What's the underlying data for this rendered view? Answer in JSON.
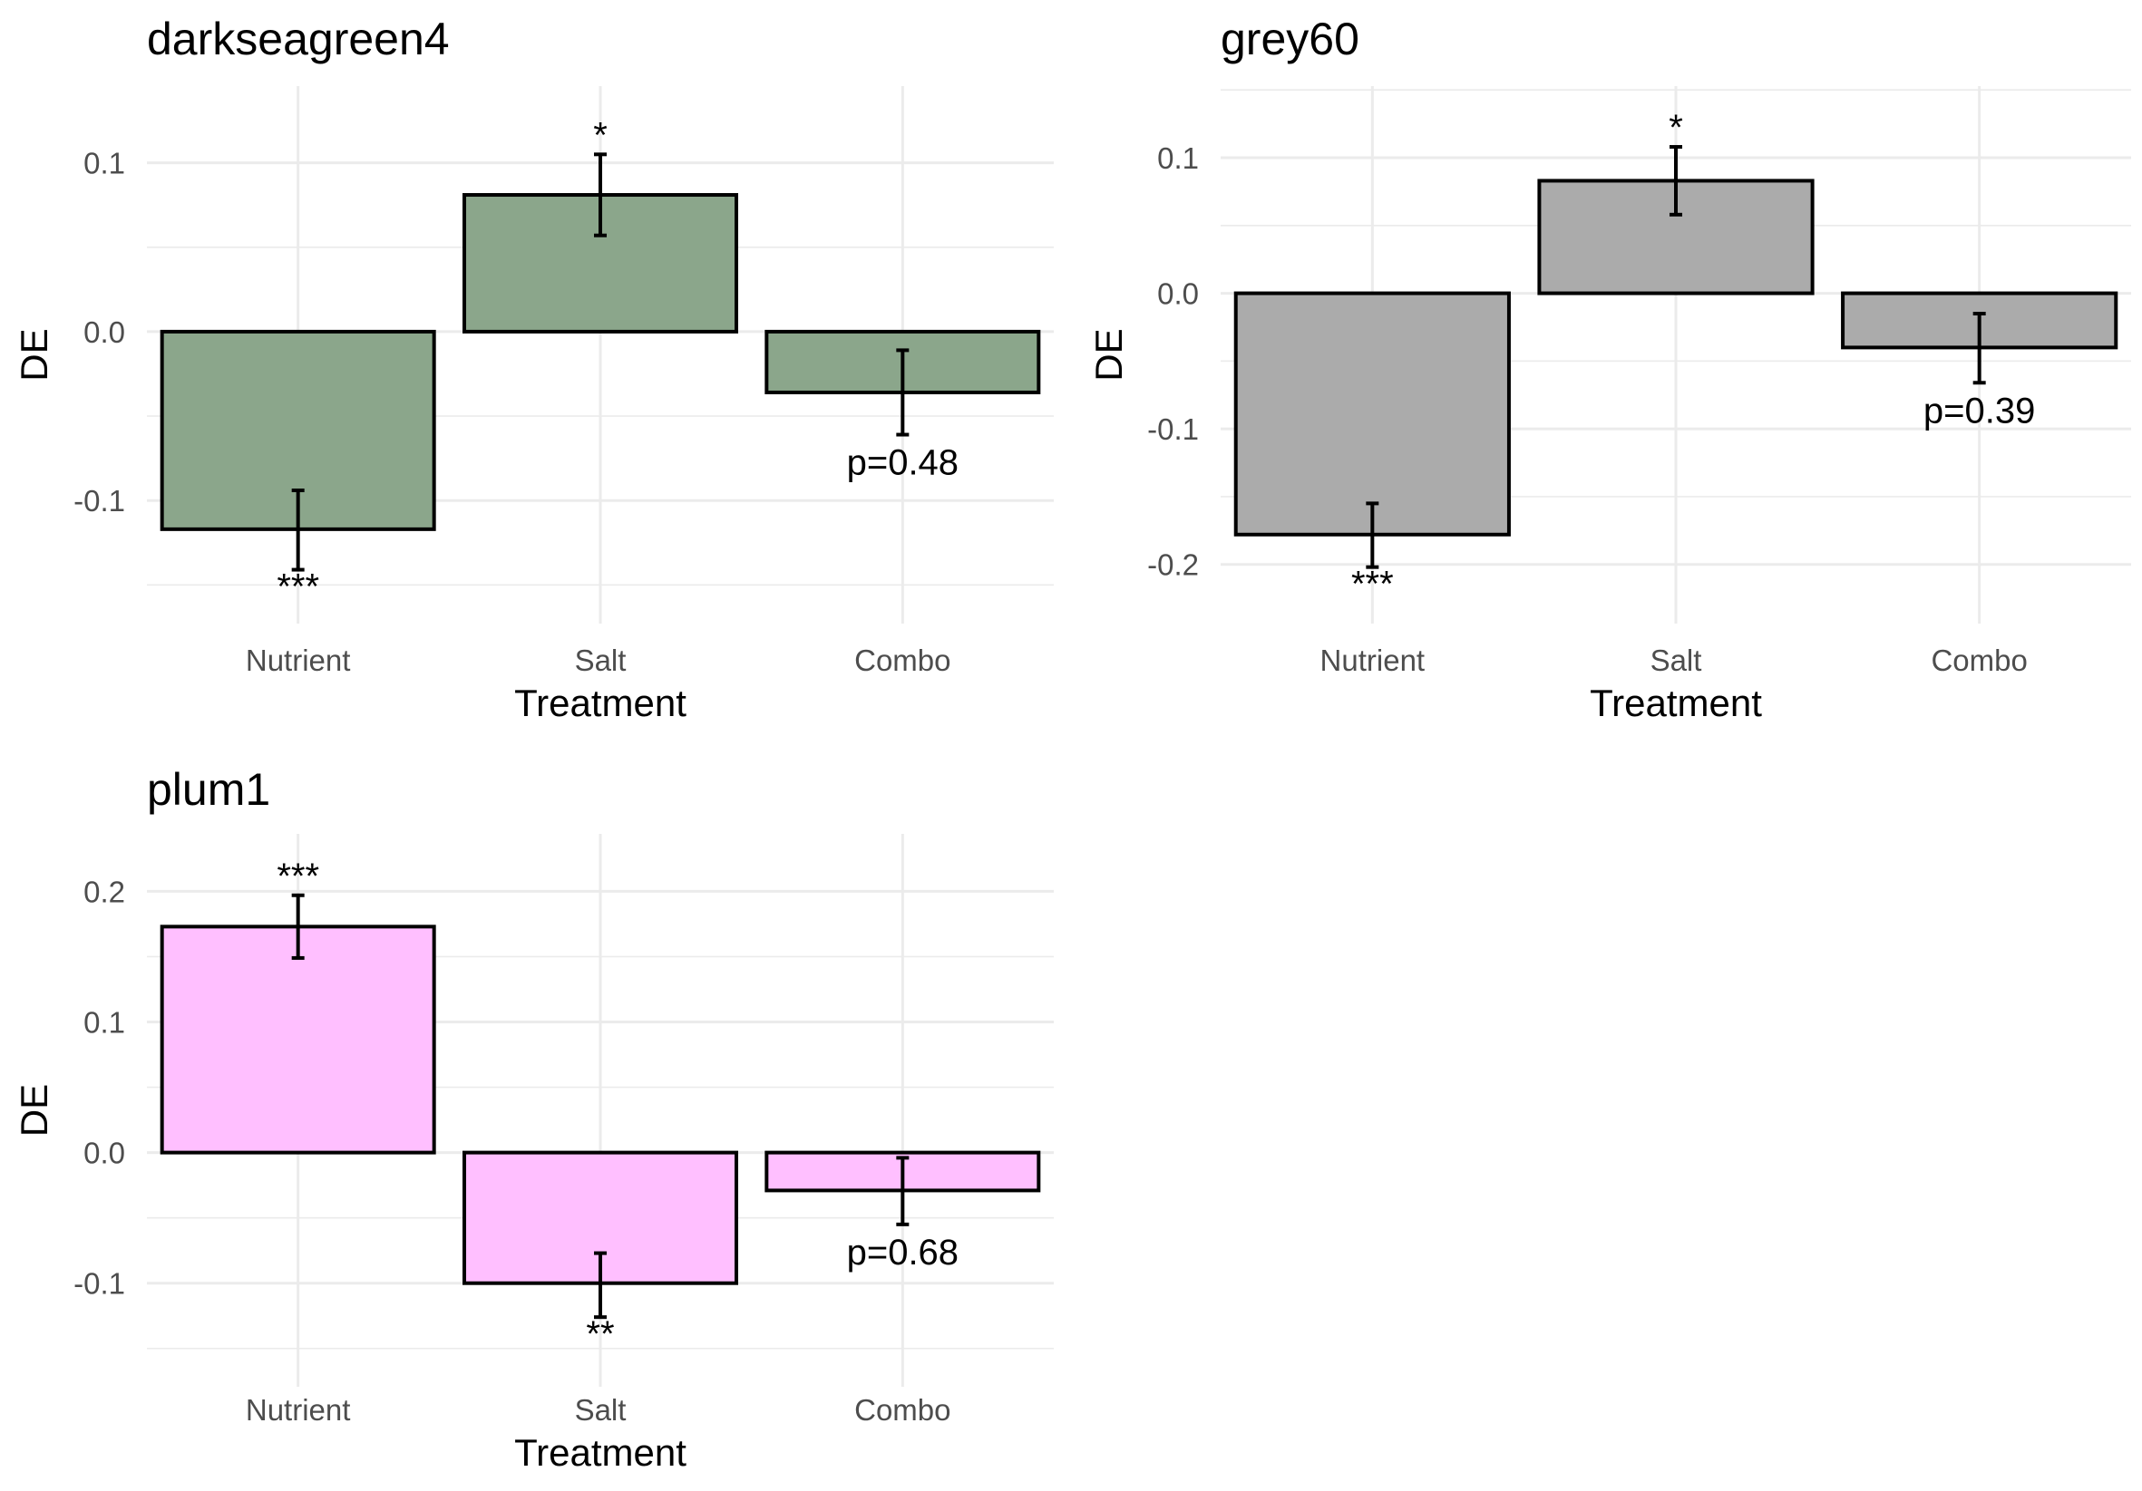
{
  "chart_data": [
    {
      "type": "bar",
      "title": "darkseagreen4",
      "xlabel": "Treatment",
      "ylabel": "DE",
      "categories": [
        "Nutrient",
        "Salt",
        "Combo"
      ],
      "values": [
        -0.117,
        0.081,
        -0.036
      ],
      "error_low": [
        -0.141,
        0.057,
        -0.061
      ],
      "error_high": [
        -0.094,
        0.105,
        -0.011
      ],
      "annotations": [
        "***",
        "*",
        "p=0.48"
      ],
      "ylim": [
        -0.18,
        0.14
      ],
      "yticks": [
        -0.1,
        0.0,
        0.1
      ],
      "ytick_labels": [
        "-0.1",
        "0.0",
        "0.1"
      ],
      "bar_color": "#8ba68b",
      "grid": true
    },
    {
      "type": "bar",
      "title": "grey60",
      "xlabel": "Treatment",
      "ylabel": "DE",
      "categories": [
        "Nutrient",
        "Salt",
        "Combo"
      ],
      "values": [
        -0.178,
        0.083,
        -0.04
      ],
      "error_low": [
        -0.202,
        0.058,
        -0.066
      ],
      "error_high": [
        -0.155,
        0.108,
        -0.015
      ],
      "annotations": [
        "***",
        "*",
        "p=0.39"
      ],
      "ylim": [
        -0.24,
        0.15
      ],
      "yticks": [
        -0.2,
        -0.1,
        0.0,
        0.1
      ],
      "ytick_labels": [
        "-0.2",
        "-0.1",
        "0.0",
        "0.1"
      ],
      "bar_color": "#ababab",
      "grid": true
    },
    {
      "type": "bar",
      "title": "plum1",
      "xlabel": "Treatment",
      "ylabel": "DE",
      "categories": [
        "Nutrient",
        "Salt",
        "Combo"
      ],
      "values": [
        0.173,
        -0.1,
        -0.029
      ],
      "error_low": [
        0.149,
        -0.126,
        -0.055
      ],
      "error_high": [
        0.197,
        -0.077,
        -0.004
      ],
      "annotations": [
        "***",
        "**",
        "p=0.68"
      ],
      "ylim": [
        -0.165,
        0.245
      ],
      "yticks": [
        -0.1,
        0.0,
        0.1,
        0.2
      ],
      "ytick_labels": [
        "-0.1",
        "0.0",
        "0.1",
        "0.2"
      ],
      "bar_color": "#ffbfff",
      "grid": true
    }
  ]
}
